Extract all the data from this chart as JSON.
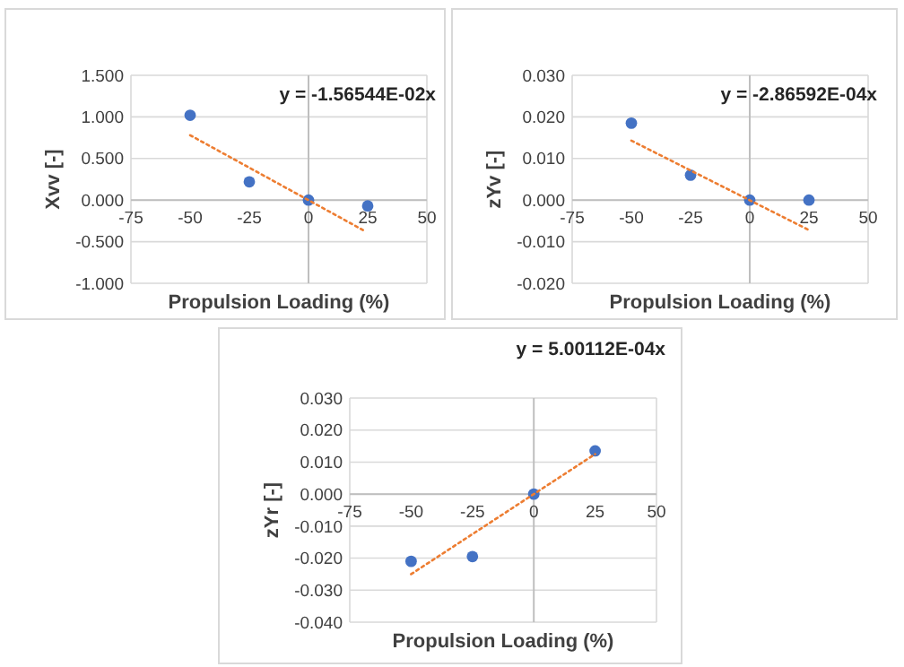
{
  "chart_data": [
    {
      "type": "scatter",
      "xlabel": "Propulsion Loading (%)",
      "ylabel": "Xvv [-]",
      "annotations": [
        "y = -1.56544E-02x"
      ],
      "xlim": [
        -75,
        50
      ],
      "xticks": [
        -75,
        -50,
        -25,
        0,
        25,
        50
      ],
      "ylim": [
        -1,
        1.5
      ],
      "yticks": [
        {
          "value": -1,
          "label": "-1.000"
        },
        {
          "value": -0.5,
          "label": "-0.500"
        },
        {
          "value": 0,
          "label": "0.000"
        },
        {
          "value": 0.5,
          "label": "0.500"
        },
        {
          "value": 1,
          "label": "1.000"
        },
        {
          "value": 1.5,
          "label": "1.500"
        }
      ],
      "grid": "y",
      "series": [
        {
          "color": "#4472c4",
          "marker": "circle",
          "x": [
            -50,
            -25,
            0,
            25
          ],
          "values": [
            1.02,
            0.22,
            0,
            -0.07
          ]
        },
        {
          "type": "line",
          "color": "#ed7d31",
          "line_style": "dotted",
          "x": [
            -50,
            23
          ],
          "values": [
            0.78,
            -0.36
          ]
        }
      ]
    },
    {
      "type": "scatter",
      "xlabel": "Propulsion Loading (%)",
      "ylabel": "zYv [-]",
      "annotations": [
        "y = -2.86592E-04x"
      ],
      "xlim": [
        -75,
        50
      ],
      "xticks": [
        -75,
        -50,
        -25,
        0,
        25,
        50
      ],
      "ylim": [
        -0.02,
        0.03
      ],
      "yticks": [
        {
          "value": -0.02,
          "label": "-0.020"
        },
        {
          "value": -0.01,
          "label": "-0.010"
        },
        {
          "value": 0,
          "label": "0.000"
        },
        {
          "value": 0.01,
          "label": "0.010"
        },
        {
          "value": 0.02,
          "label": "0.020"
        },
        {
          "value": 0.03,
          "label": "0.030"
        }
      ],
      "grid": "y",
      "series": [
        {
          "color": "#4472c4",
          "marker": "circle",
          "x": [
            -50,
            -25,
            0,
            25
          ],
          "values": [
            0.0185,
            0.006,
            0,
            0
          ]
        },
        {
          "type": "line",
          "color": "#ed7d31",
          "line_style": "dotted",
          "x": [
            -50,
            25
          ],
          "values": [
            0.0143,
            -0.0072
          ]
        }
      ]
    },
    {
      "type": "scatter",
      "xlabel": "Propulsion Loading (%)",
      "ylabel": "zYr [-]",
      "annotations": [
        "y = 5.00112E-04x"
      ],
      "xlim": [
        -75,
        50
      ],
      "xticks": [
        -75,
        -50,
        -25,
        0,
        25,
        50
      ],
      "ylim": [
        -0.04,
        0.03
      ],
      "yticks": [
        {
          "value": -0.04,
          "label": "-0.040"
        },
        {
          "value": -0.03,
          "label": "-0.030"
        },
        {
          "value": -0.02,
          "label": "-0.020"
        },
        {
          "value": -0.01,
          "label": "-0.010"
        },
        {
          "value": 0,
          "label": "0.000"
        },
        {
          "value": 0.01,
          "label": "0.010"
        },
        {
          "value": 0.02,
          "label": "0.020"
        },
        {
          "value": 0.03,
          "label": "0.030"
        }
      ],
      "grid": "y",
      "series": [
        {
          "color": "#4472c4",
          "marker": "circle",
          "x": [
            -50,
            -25,
            0,
            25
          ],
          "values": [
            -0.021,
            -0.0195,
            0,
            0.0135
          ]
        },
        {
          "type": "line",
          "color": "#ed7d31",
          "line_style": "dotted",
          "x": [
            -50,
            25
          ],
          "values": [
            -0.025,
            0.0125
          ]
        }
      ]
    }
  ]
}
